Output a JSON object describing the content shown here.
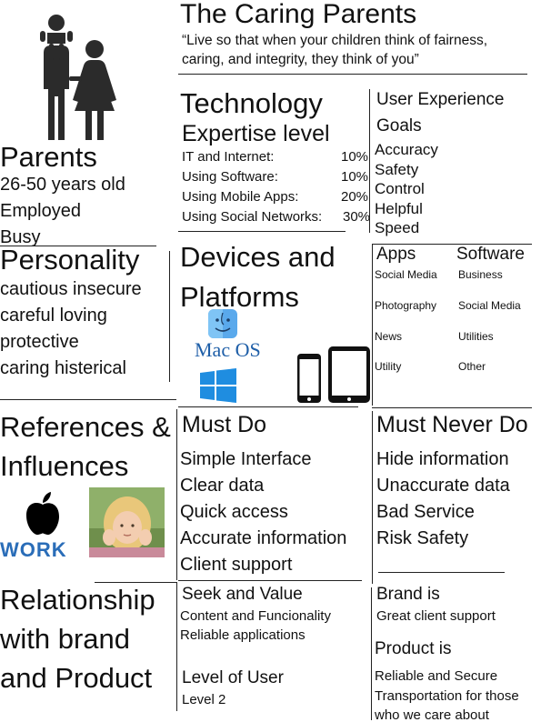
{
  "header": {
    "title": "The Caring Parents",
    "quote_line1": "“Live so that when your children think of fairness,",
    "quote_line2": "caring, and integrity, they think of you”"
  },
  "persona": {
    "icon": "family-icon",
    "title": "Parents",
    "details": [
      "26-50 years old",
      "Employed",
      "Busy"
    ]
  },
  "technology": {
    "title_line1": "Technology",
    "title_line2": "Expertise level",
    "rows": [
      {
        "label": "IT and Internet:",
        "value": "10%"
      },
      {
        "label": "Using Software:",
        "value": "10%"
      },
      {
        "label": "Using Mobile Apps:",
        "value": "20%"
      },
      {
        "label": "Using Social Networks:",
        "value": "30%"
      }
    ]
  },
  "ux_goals": {
    "title_line1": "User Experience",
    "title_line2": "Goals",
    "items": [
      "Accuracy",
      "Safety",
      "Control",
      "Helpful",
      "Speed"
    ]
  },
  "personality": {
    "title": "Personality",
    "lines": [
      "cautious  insecure",
      "careful  loving",
      "protective",
      "caring  histerical"
    ]
  },
  "devices": {
    "title_line1": "Devices and",
    "title_line2": "Platforms",
    "platform_labels": {
      "mac": "Mac OS"
    },
    "icons": [
      "finder-icon",
      "windows-icon",
      "phone-icon",
      "tablet-icon"
    ]
  },
  "apps": {
    "title": "Apps",
    "items": [
      "Social Media",
      "Photography",
      "News",
      "Utility"
    ]
  },
  "software": {
    "title": "Software",
    "items": [
      "Business",
      "Social Media",
      "Utilities",
      "Other"
    ]
  },
  "references": {
    "title_line1": "References &",
    "title_line2": "Influences",
    "work_label": "WORK",
    "icons": [
      "apple-icon",
      "child-photo",
      "work-icon"
    ]
  },
  "must_do": {
    "title": "Must Do",
    "items": [
      "Simple Interface",
      "Clear data",
      "Quick access",
      "Accurate information",
      "Client support"
    ]
  },
  "must_never_do": {
    "title": "Must Never Do",
    "items": [
      "Hide information",
      "Unaccurate data",
      "Bad Service",
      "Risk Safety"
    ]
  },
  "relationship": {
    "title_line1": "Relationship",
    "title_line2": "with brand",
    "title_line3": "and Product"
  },
  "seek_value": {
    "title": "Seek and Value",
    "items": [
      "Content and Funcionality",
      "Reliable applications"
    ]
  },
  "level_of_user": {
    "title": "Level of User",
    "value": "Level 2"
  },
  "brand": {
    "title": "Brand is",
    "value": "Great client support"
  },
  "product": {
    "title": "Product is",
    "lines": [
      "Reliable and Secure",
      "Transportation for those",
      "who we care about"
    ]
  }
}
